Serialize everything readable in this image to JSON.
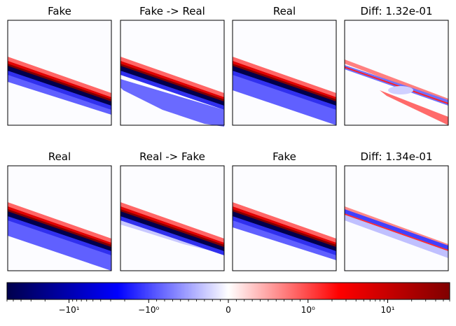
{
  "chart_data": {
    "type": "heatmap",
    "colormap": "seismic",
    "background_color": "#fcfcff",
    "rows": [
      {
        "panels": [
          {
            "title": "Fake",
            "kind": "shower",
            "variant": "fake"
          },
          {
            "title": "Fake -> Real",
            "kind": "shower",
            "variant": "translated-to-real"
          },
          {
            "title": "Real",
            "kind": "shower",
            "variant": "real"
          },
          {
            "title": "Diff: 1.32e-01",
            "kind": "diff",
            "variant": "diff-1"
          }
        ]
      },
      {
        "panels": [
          {
            "title": "Real",
            "kind": "shower",
            "variant": "real"
          },
          {
            "title": "Real -> Fake",
            "kind": "shower",
            "variant": "translated-to-fake"
          },
          {
            "title": "Fake",
            "kind": "shower",
            "variant": "fake"
          },
          {
            "title": "Diff: 1.34e-01",
            "kind": "diff",
            "variant": "diff-2"
          }
        ]
      }
    ],
    "colorbar": {
      "scale": "symlog",
      "range": [
        -60,
        60
      ],
      "linthresh": 1,
      "ticks": [
        {
          "value": -10,
          "label": "−10¹"
        },
        {
          "value": -1,
          "label": "−10⁰"
        },
        {
          "value": 0,
          "label": "0"
        },
        {
          "value": 1,
          "label": "10⁰"
        },
        {
          "value": 10,
          "label": "10¹"
        }
      ]
    }
  }
}
